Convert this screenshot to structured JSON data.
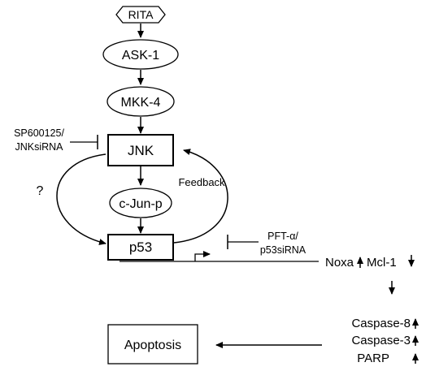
{
  "nodes": {
    "rita": "RITA",
    "ask1": "ASK-1",
    "mkk4": "MKK-4",
    "jnk": "JNK",
    "cjun": "c-Jun-p",
    "p53": "p53",
    "apoptosis": "Apoptosis"
  },
  "inhibitors": {
    "jnk_line1": "SP600125/",
    "jnk_line2": "JNKsiRNA",
    "p53_line1": "PFT-α/",
    "p53_line2": "p53siRNA"
  },
  "annotations": {
    "question": "?",
    "feedback": "Feedback"
  },
  "targets": {
    "noxa": "Noxa",
    "mcl1": "Mcl-1",
    "casp8": "Caspase-8",
    "casp3": "Caspase-3",
    "parp": "PARP"
  }
}
